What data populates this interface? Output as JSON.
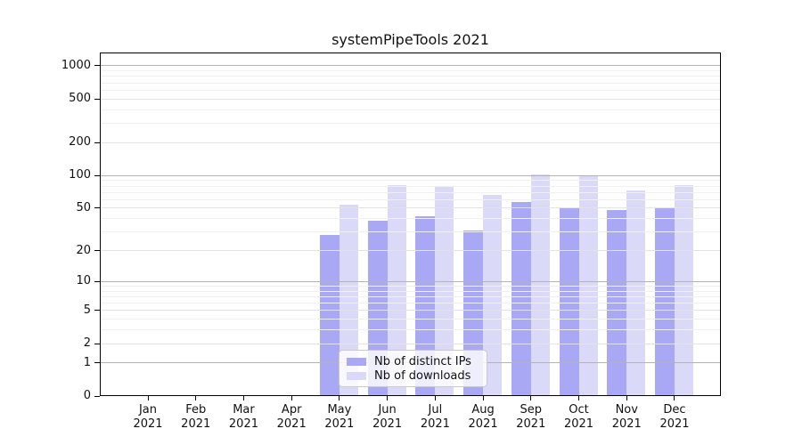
{
  "chart_data": {
    "type": "bar",
    "title": "systemPipeTools 2021",
    "year": "2021",
    "months": [
      "Jan",
      "Feb",
      "Mar",
      "Apr",
      "May",
      "Jun",
      "Jul",
      "Aug",
      "Sep",
      "Oct",
      "Nov",
      "Dec"
    ],
    "series": [
      {
        "name": "Nb of distinct IPs",
        "color": "#a8a8f5",
        "values": [
          0,
          0,
          0,
          0,
          28,
          38,
          42,
          31,
          57,
          50,
          48,
          50
        ]
      },
      {
        "name": "Nb of downloads",
        "color": "#dadaf8",
        "values": [
          0,
          0,
          0,
          0,
          54,
          81,
          80,
          66,
          102,
          98,
          73,
          82
        ]
      }
    ],
    "y_axis": {
      "scale": "log10(value+1)",
      "ticks": [
        0,
        1,
        2,
        5,
        10,
        20,
        50,
        100,
        200,
        500,
        1000
      ],
      "minor_ticks": [
        3,
        4,
        6,
        7,
        8,
        9,
        30,
        40,
        60,
        70,
        80,
        90,
        300,
        400,
        600,
        700,
        800,
        900
      ],
      "ylim": [
        0,
        1300
      ],
      "decade_ticks": [
        1,
        10,
        100,
        1000
      ]
    },
    "x_axis": {
      "label_line2": "2021"
    },
    "legend": {
      "position": "lower center"
    },
    "grid": true
  }
}
